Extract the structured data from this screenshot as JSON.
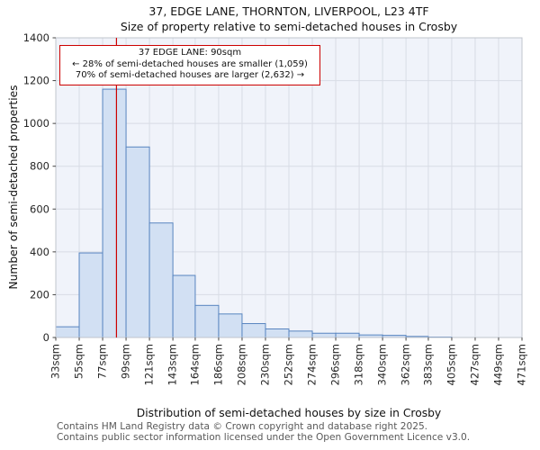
{
  "chart_data": {
    "type": "bar",
    "title": "37, EDGE LANE, THORNTON, LIVERPOOL, L23 4TF",
    "subtitle": "Size of property relative to semi-detached houses in Crosby",
    "xlabel": "Distribution of semi-detached houses by size in Crosby",
    "ylabel": "Number of semi-detached properties",
    "bin_labels": [
      "33sqm",
      "55sqm",
      "77sqm",
      "99sqm",
      "121sqm",
      "143sqm",
      "164sqm",
      "186sqm",
      "208sqm",
      "230sqm",
      "252sqm",
      "274sqm",
      "296sqm",
      "318sqm",
      "340sqm",
      "362sqm",
      "383sqm",
      "405sqm",
      "427sqm",
      "449sqm",
      "471sqm"
    ],
    "bin_edges_sqm": [
      33,
      55,
      77,
      99,
      121,
      143,
      164,
      186,
      208,
      230,
      252,
      274,
      296,
      318,
      340,
      362,
      383,
      405,
      427,
      449,
      471
    ],
    "values": [
      50,
      395,
      1160,
      890,
      535,
      290,
      150,
      110,
      65,
      40,
      30,
      20,
      20,
      12,
      10,
      5,
      2,
      0,
      0,
      0
    ],
    "ylim": [
      0,
      1400
    ],
    "y_ticks": [
      0,
      200,
      400,
      600,
      800,
      1000,
      1200,
      1400
    ],
    "grid": true,
    "legend": "none",
    "marker": {
      "x_sqm": 90,
      "color": "#cc0000"
    },
    "annotation": {
      "line1": "37 EDGE LANE: 90sqm",
      "line2": "← 28% of semi-detached houses are smaller (1,059)",
      "line3": "70% of semi-detached houses are larger (2,632) →"
    },
    "colors": {
      "bar_fill": "#d2e0f3",
      "bar_stroke": "#5885c0",
      "plot_bg": "#f0f3fa",
      "grid_color": "#d8dce5",
      "axis_border": "#c0c4cc",
      "tick_text": "#262626"
    }
  },
  "footer": {
    "line1": "Contains HM Land Registry data © Crown copyright and database right 2025.",
    "line2": "Contains public sector information licensed under the Open Government Licence v3.0."
  }
}
